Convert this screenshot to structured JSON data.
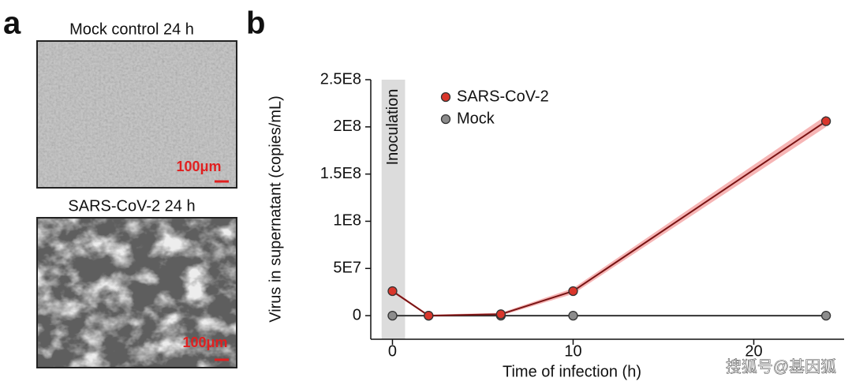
{
  "panel_labels": [
    "a",
    "b"
  ],
  "panel_a": {
    "images": [
      {
        "title": "Mock control 24 h",
        "scale_label": "100μm"
      },
      {
        "title": "SARS-CoV-2 24 h",
        "scale_label": "100μm"
      }
    ]
  },
  "watermark": "搜狐号@基因狐",
  "chart_data": {
    "type": "line",
    "xlabel": "Time of infection (h)",
    "ylabel": "Virus in supernatant (copies/mL)",
    "x": [
      0,
      2,
      6,
      10,
      24
    ],
    "series": [
      {
        "name": "SARS-CoV-2",
        "color": "#d9362b",
        "line_color": "#7a1414",
        "band_color": "#f4a3a3",
        "values": [
          26000000,
          0,
          1500000,
          26000000,
          206000000
        ],
        "errors": [
          1500000,
          1000000,
          1500000,
          3000000,
          6000000
        ]
      },
      {
        "name": "Mock",
        "color": "#8c8c8c",
        "line_color": "#333333",
        "values": [
          0,
          0,
          0,
          0,
          0
        ]
      }
    ],
    "xlim": [
      -1.2,
      25
    ],
    "xticks": [
      0,
      10,
      20
    ],
    "ylim": [
      -25000000,
      250000000
    ],
    "yticks": [
      0,
      {
        "value": 50000000,
        "label": "5E7"
      },
      {
        "value": 100000000,
        "label": "1E8"
      },
      {
        "value": 150000000,
        "label": "1.5E8"
      },
      {
        "value": 200000000,
        "label": "2E8"
      },
      {
        "value": 250000000,
        "label": "2.5E8"
      }
    ],
    "annotations": [
      {
        "text": "Inoculation",
        "x_range": [
          -0.6,
          0.7
        ]
      }
    ],
    "legend": "upper left"
  }
}
